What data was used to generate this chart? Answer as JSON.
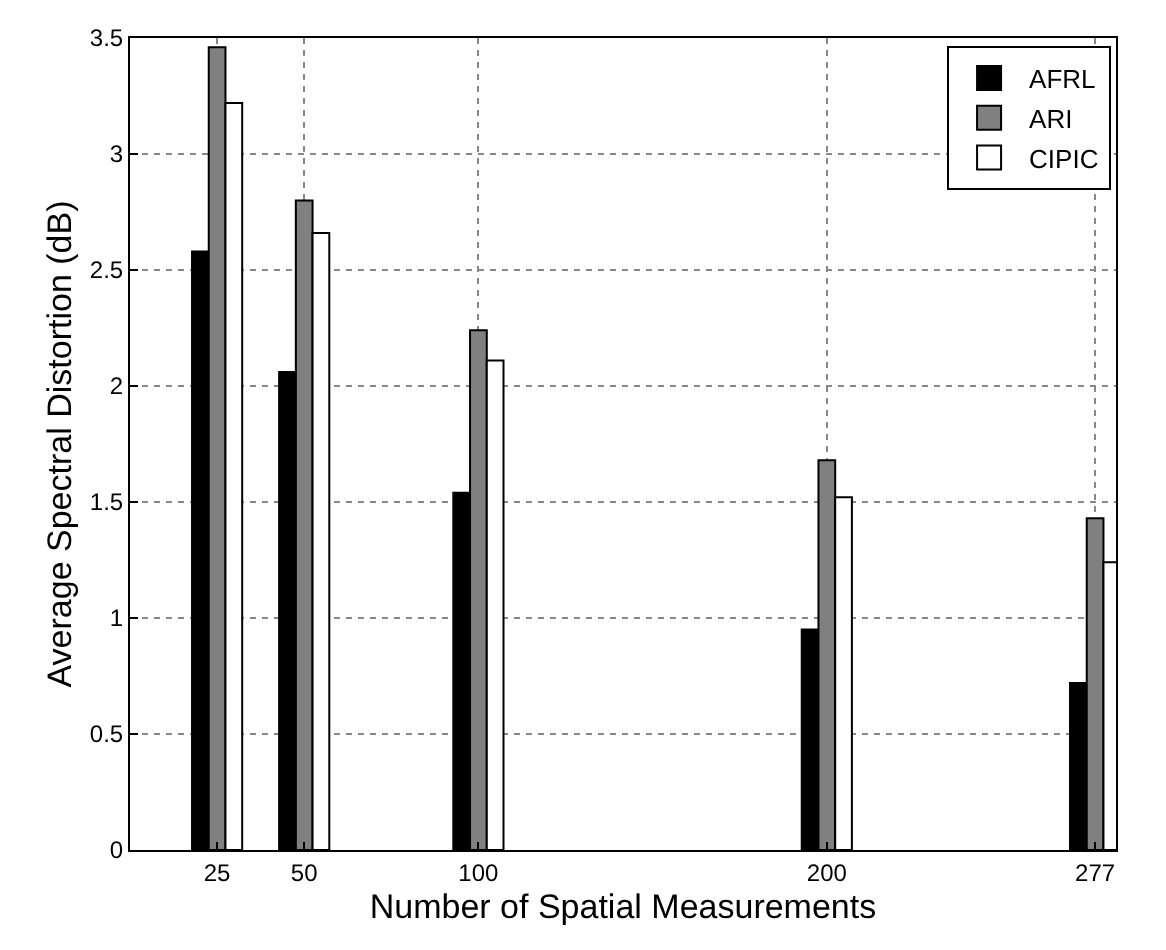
{
  "chart_data": {
    "type": "bar",
    "xlabel": "Number of Spatial Measurements",
    "ylabel": "Average Spectral Distortion (dB)",
    "x": [
      25,
      50,
      100,
      200,
      277
    ],
    "series": [
      {
        "name": "AFRL",
        "color": "#000000",
        "values": [
          2.58,
          2.06,
          1.54,
          0.95,
          0.72
        ]
      },
      {
        "name": "ARI",
        "color": "#808080",
        "values": [
          3.46,
          2.8,
          2.24,
          1.68,
          1.43
        ]
      },
      {
        "name": "CIPIC",
        "color": "#ffffff",
        "values": [
          3.22,
          2.66,
          2.11,
          1.52,
          1.24
        ]
      }
    ],
    "xlim": [
      0,
      283
    ],
    "xticks": [
      25,
      50,
      100,
      200,
      277
    ],
    "ylim": [
      0,
      3.5
    ],
    "yticks": [
      0,
      0.5,
      1,
      1.5,
      2,
      2.5,
      3,
      3.5
    ],
    "grid": true,
    "legend": "top right"
  }
}
